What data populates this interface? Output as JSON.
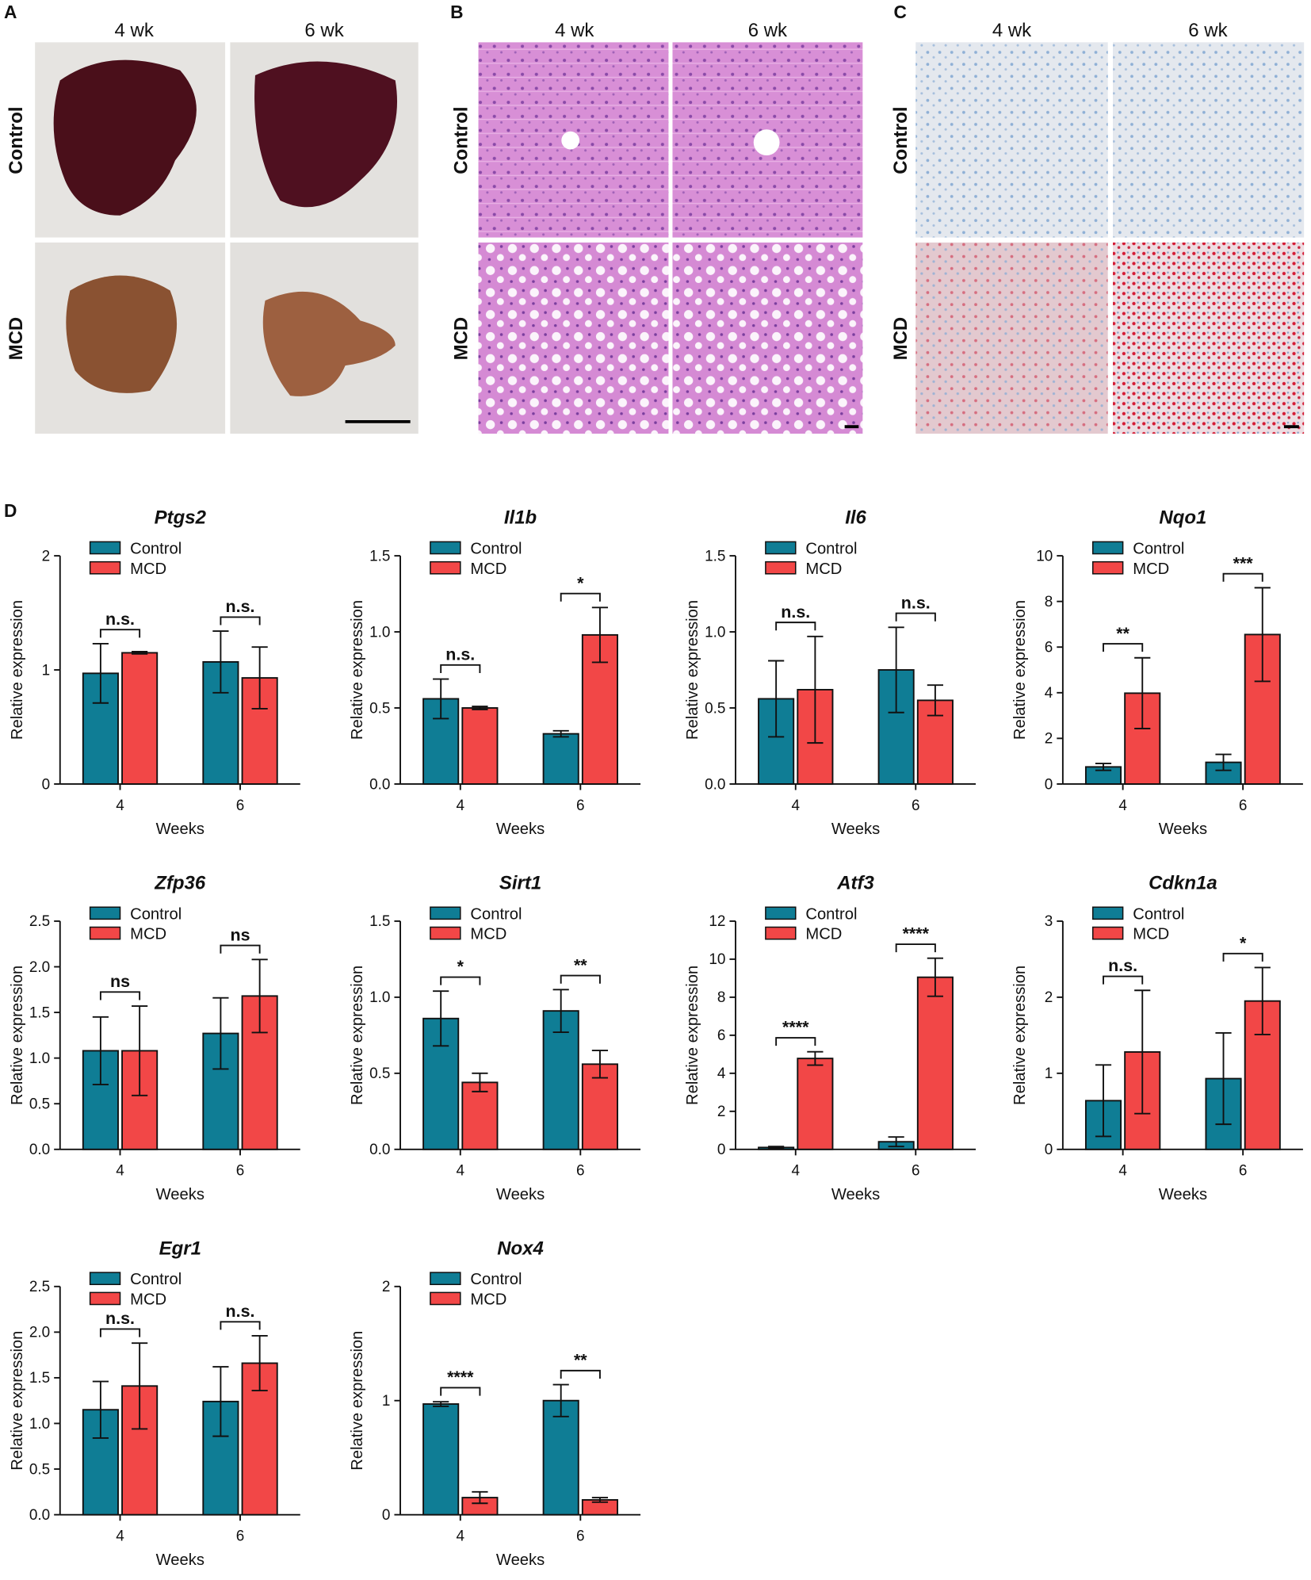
{
  "figure": {
    "panels": [
      {
        "label": "A",
        "columns": [
          "4 wk",
          "6 wk"
        ],
        "rows": [
          "Control",
          "MCD"
        ]
      },
      {
        "label": "B",
        "columns": [
          "4 wk",
          "6 wk"
        ],
        "rows": [
          "Control",
          "MCD"
        ]
      },
      {
        "label": "C",
        "columns": [
          "4 wk",
          "6 wk"
        ],
        "rows": [
          "Control",
          "MCD"
        ]
      }
    ],
    "chart_panel_label": "D"
  },
  "chart_data": [
    {
      "type": "bar",
      "title": "Ptgs2",
      "xlabel": "Weeks",
      "ylabel": "Relative expression",
      "categories": [
        "4",
        "6"
      ],
      "series": [
        {
          "name": "Control",
          "color": "#0f7d95",
          "values": [
            0.97,
            1.07
          ],
          "errors": [
            0.26,
            0.27
          ]
        },
        {
          "name": "MCD",
          "color": "#f24747",
          "values": [
            1.15,
            0.93
          ],
          "errors": [
            0.01,
            0.27
          ]
        }
      ],
      "annotations": [
        "n.s.",
        "n.s."
      ],
      "ylim": [
        0,
        2
      ],
      "yticks": [
        0,
        1,
        2
      ]
    },
    {
      "type": "bar",
      "title": "Il1b",
      "xlabel": "Weeks",
      "ylabel": "Relative expression",
      "categories": [
        "4",
        "6"
      ],
      "series": [
        {
          "name": "Control",
          "color": "#0f7d95",
          "values": [
            0.56,
            0.33
          ],
          "errors": [
            0.13,
            0.02
          ]
        },
        {
          "name": "MCD",
          "color": "#f24747",
          "values": [
            0.5,
            0.98
          ],
          "errors": [
            0.01,
            0.18
          ]
        }
      ],
      "annotations": [
        "n.s.",
        "*"
      ],
      "ylim": [
        0,
        1.5
      ],
      "yticks": [
        {
          "value": 0,
          "label": "0.0"
        },
        0.5,
        {
          "value": 1,
          "label": "1.0"
        },
        1.5
      ]
    },
    {
      "type": "bar",
      "title": "Il6",
      "xlabel": "Weeks",
      "ylabel": "Relative expression",
      "categories": [
        "4",
        "6"
      ],
      "series": [
        {
          "name": "Control",
          "color": "#0f7d95",
          "values": [
            0.56,
            0.75
          ],
          "errors": [
            0.25,
            0.28
          ]
        },
        {
          "name": "MCD",
          "color": "#f24747",
          "values": [
            0.62,
            0.55
          ],
          "errors": [
            0.35,
            0.1
          ]
        }
      ],
      "annotations": [
        "n.s.",
        "n.s."
      ],
      "ylim": [
        0,
        1.5
      ],
      "yticks": [
        {
          "value": 0,
          "label": "0.0"
        },
        0.5,
        {
          "value": 1,
          "label": "1.0"
        },
        1.5
      ]
    },
    {
      "type": "bar",
      "title": "Nqo1",
      "xlabel": "Weeks",
      "ylabel": "Relative expression",
      "categories": [
        "4",
        "6"
      ],
      "series": [
        {
          "name": "Control",
          "color": "#0f7d95",
          "values": [
            0.75,
            0.95
          ],
          "errors": [
            0.15,
            0.35
          ]
        },
        {
          "name": "MCD",
          "color": "#f24747",
          "values": [
            3.98,
            6.55
          ],
          "errors": [
            1.55,
            2.05
          ]
        }
      ],
      "annotations": [
        "**",
        "***"
      ],
      "ylim": [
        0,
        10
      ],
      "yticks": [
        0,
        2,
        4,
        6,
        8,
        10
      ]
    },
    {
      "type": "bar",
      "title": "Zfp36",
      "xlabel": "Weeks",
      "ylabel": "Relative expression",
      "categories": [
        "4",
        "6"
      ],
      "series": [
        {
          "name": "Control",
          "color": "#0f7d95",
          "values": [
            1.08,
            1.27
          ],
          "errors": [
            0.37,
            0.39
          ]
        },
        {
          "name": "MCD",
          "color": "#f24747",
          "values": [
            1.08,
            1.68
          ],
          "errors": [
            0.49,
            0.4
          ]
        }
      ],
      "annotations": [
        "ns",
        "ns"
      ],
      "ylim": [
        0,
        2.5
      ],
      "yticks": [
        {
          "value": 0,
          "label": "0.0"
        },
        0.5,
        {
          "value": 1,
          "label": "1.0"
        },
        1.5,
        {
          "value": 2,
          "label": "2.0"
        },
        2.5
      ]
    },
    {
      "type": "bar",
      "title": "Sirt1",
      "xlabel": "Weeks",
      "ylabel": "Relative expression",
      "categories": [
        "4",
        "6"
      ],
      "series": [
        {
          "name": "Control",
          "color": "#0f7d95",
          "values": [
            0.86,
            0.91
          ],
          "errors": [
            0.18,
            0.14
          ]
        },
        {
          "name": "MCD",
          "color": "#f24747",
          "values": [
            0.44,
            0.56
          ],
          "errors": [
            0.06,
            0.09
          ]
        }
      ],
      "annotations": [
        "*",
        "**"
      ],
      "ylim": [
        0,
        1.5
      ],
      "yticks": [
        {
          "value": 0,
          "label": "0.0"
        },
        0.5,
        {
          "value": 1,
          "label": "1.0"
        },
        1.5
      ]
    },
    {
      "type": "bar",
      "title": "Atf3",
      "xlabel": "Weeks",
      "ylabel": "Relative expression",
      "categories": [
        "4",
        "6"
      ],
      "series": [
        {
          "name": "Control",
          "color": "#0f7d95",
          "values": [
            0.1,
            0.4
          ],
          "errors": [
            0.05,
            0.25
          ]
        },
        {
          "name": "MCD",
          "color": "#f24747",
          "values": [
            4.78,
            9.05
          ],
          "errors": [
            0.35,
            1.0
          ]
        }
      ],
      "annotations": [
        "****",
        "****"
      ],
      "ylim": [
        0,
        12
      ],
      "yticks": [
        0,
        2,
        4,
        6,
        8,
        10,
        12
      ]
    },
    {
      "type": "bar",
      "title": "Cdkn1a",
      "xlabel": "Weeks",
      "ylabel": "Relative expression",
      "categories": [
        "4",
        "6"
      ],
      "series": [
        {
          "name": "Control",
          "color": "#0f7d95",
          "values": [
            0.64,
            0.93
          ],
          "errors": [
            0.47,
            0.6
          ]
        },
        {
          "name": "MCD",
          "color": "#f24747",
          "values": [
            1.28,
            1.95
          ],
          "errors": [
            0.81,
            0.44
          ]
        }
      ],
      "annotations": [
        "n.s.",
        "*"
      ],
      "ylim": [
        0,
        3
      ],
      "yticks": [
        0,
        1,
        2,
        3
      ]
    },
    {
      "type": "bar",
      "title": "Egr1",
      "xlabel": "Weeks",
      "ylabel": "Relative expression",
      "categories": [
        "4",
        "6"
      ],
      "series": [
        {
          "name": "Control",
          "color": "#0f7d95",
          "values": [
            1.15,
            1.24
          ],
          "errors": [
            0.31,
            0.38
          ]
        },
        {
          "name": "MCD",
          "color": "#f24747",
          "values": [
            1.41,
            1.66
          ],
          "errors": [
            0.47,
            0.3
          ]
        }
      ],
      "annotations": [
        "n.s.",
        "n.s."
      ],
      "ylim": [
        0,
        2.5
      ],
      "yticks": [
        {
          "value": 0,
          "label": "0.0"
        },
        0.5,
        {
          "value": 1,
          "label": "1.0"
        },
        1.5,
        {
          "value": 2,
          "label": "2.0"
        },
        2.5
      ]
    },
    {
      "type": "bar",
      "title": "Nox4",
      "xlabel": "Weeks",
      "ylabel": "Relative expression",
      "categories": [
        "4",
        "6"
      ],
      "series": [
        {
          "name": "Control",
          "color": "#0f7d95",
          "values": [
            0.97,
            1.0
          ],
          "errors": [
            0.02,
            0.14
          ]
        },
        {
          "name": "MCD",
          "color": "#f24747",
          "values": [
            0.15,
            0.13
          ],
          "errors": [
            0.05,
            0.02
          ]
        }
      ],
      "annotations": [
        "****",
        "**"
      ],
      "ylim": [
        0,
        2
      ],
      "yticks": [
        0,
        1,
        2
      ]
    }
  ]
}
